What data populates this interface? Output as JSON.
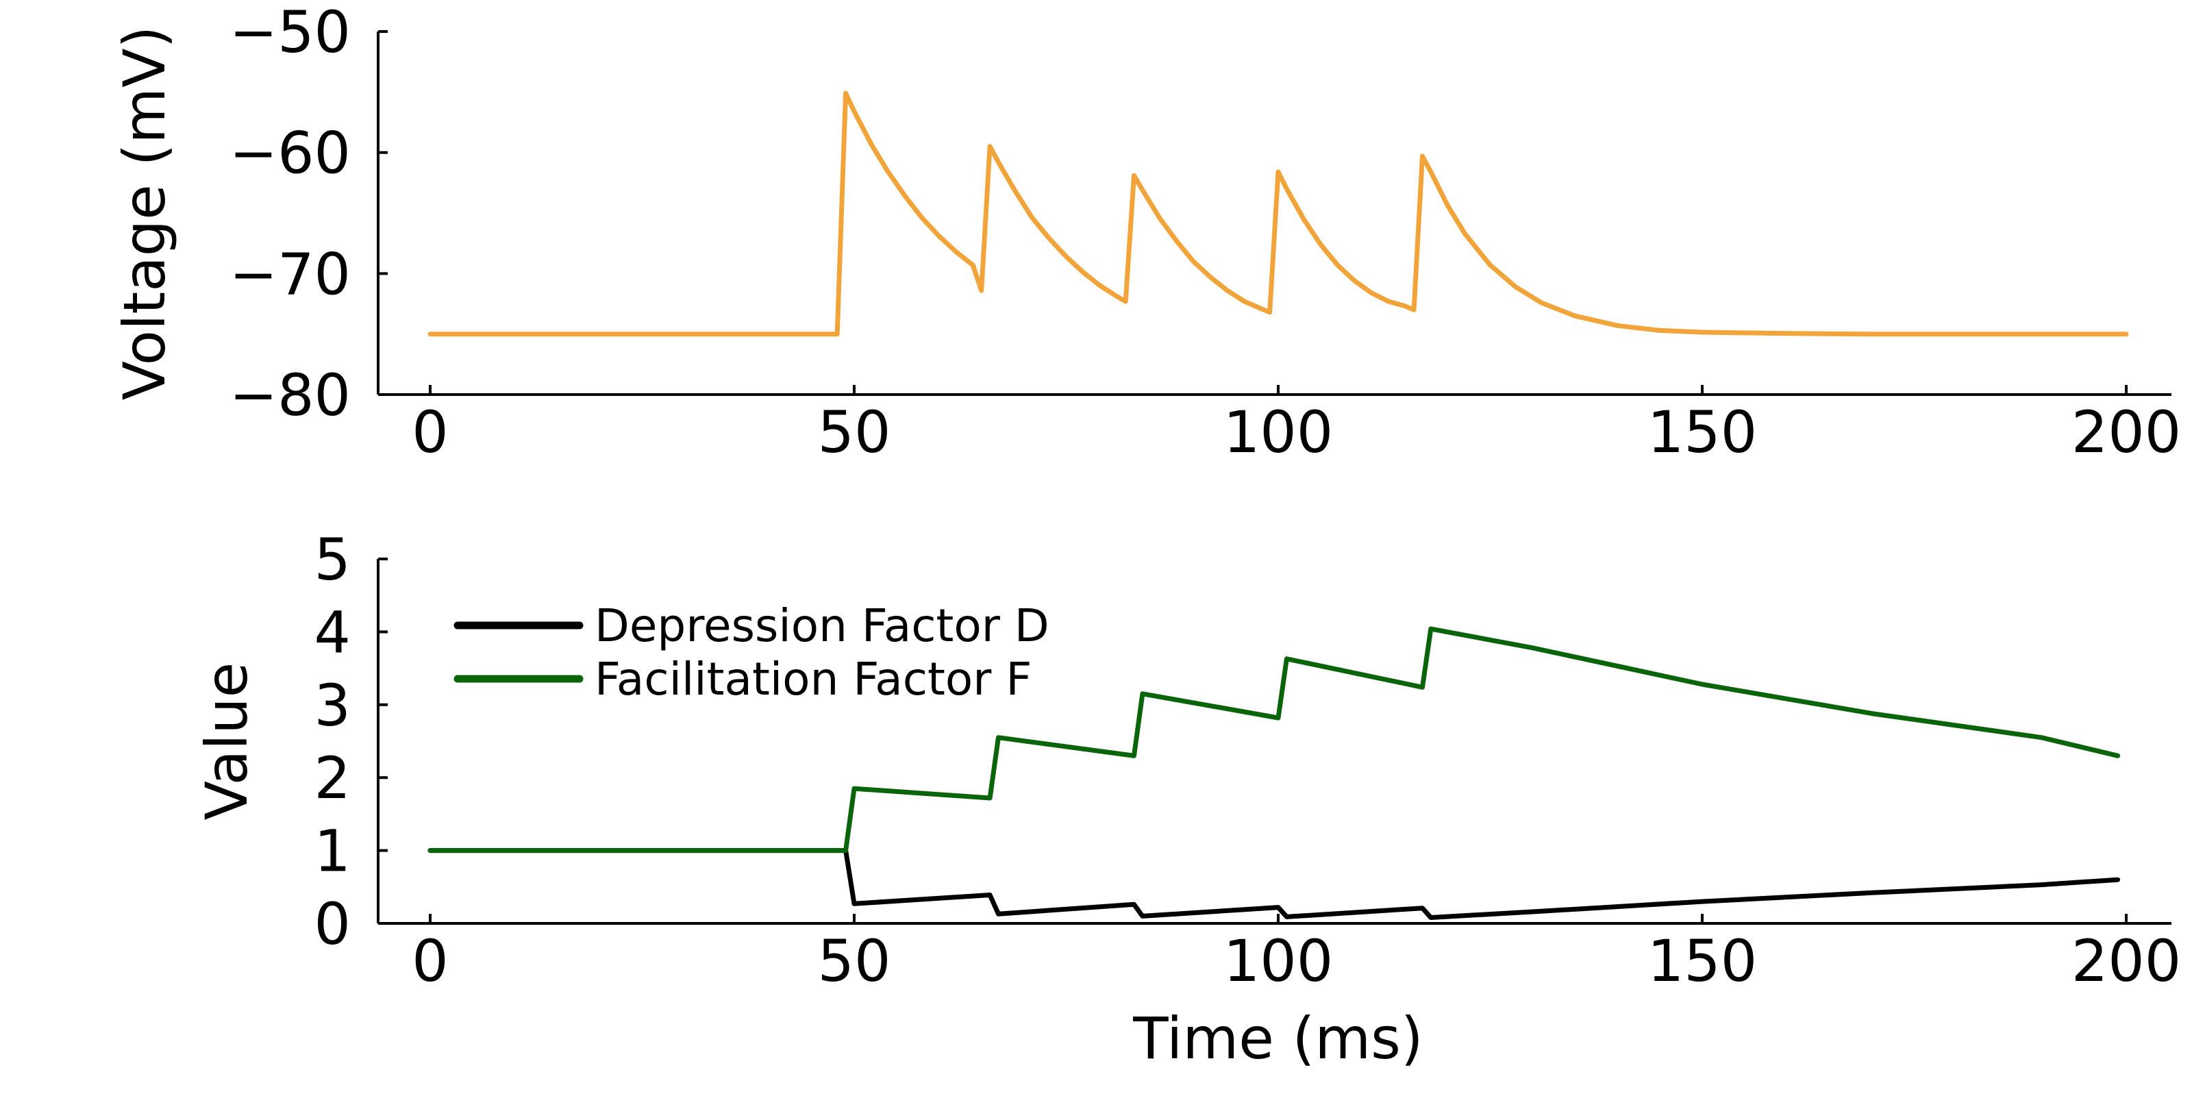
{
  "chart_data": [
    {
      "type": "line",
      "xlabel": "",
      "ylabel": "Voltage (mV)",
      "xlim": [
        0,
        200
      ],
      "ylim": [
        -80,
        -50
      ],
      "xticks": [
        "0",
        "50",
        "100",
        "150",
        "200"
      ],
      "yticks": [
        "−80",
        "−70",
        "−60",
        "−50"
      ],
      "grid": false,
      "series": [
        {
          "color": "#f0a43a",
          "x": [
            0,
            48,
            49,
            50,
            52,
            54,
            56,
            58,
            60,
            62,
            64,
            65,
            66,
            67,
            69,
            71,
            73,
            75,
            77,
            79,
            81,
            82,
            83,
            84,
            86,
            88,
            90,
            92,
            94,
            96,
            98,
            99,
            100,
            101,
            103,
            105,
            107,
            109,
            111,
            113,
            115,
            116,
            117,
            118,
            120,
            122,
            125,
            128,
            131,
            135,
            140,
            145,
            150,
            160,
            170,
            180,
            190,
            200
          ],
          "y": [
            -75,
            -75,
            -55.1,
            -56.6,
            -59.3,
            -61.6,
            -63.6,
            -65.4,
            -66.9,
            -68.2,
            -69.3,
            -71.4,
            -59.5,
            -60.8,
            -63.2,
            -65.4,
            -67.1,
            -68.6,
            -69.9,
            -71,
            -71.9,
            -72.3,
            -61.9,
            -63.1,
            -65.4,
            -67.3,
            -69,
            -70.3,
            -71.4,
            -72.3,
            -72.9,
            -73.2,
            -61.6,
            -63,
            -65.5,
            -67.6,
            -69.3,
            -70.6,
            -71.6,
            -72.3,
            -72.7,
            -73,
            -60.3,
            -61.6,
            -64.4,
            -66.7,
            -69.3,
            -71.1,
            -72.4,
            -73.5,
            -74.3,
            -74.7,
            -74.85,
            -74.95,
            -75,
            -75,
            -75,
            -75
          ]
        }
      ]
    },
    {
      "type": "line",
      "xlabel": "Time (ms)",
      "ylabel": "Value",
      "xlim": [
        0,
        200
      ],
      "ylim": [
        0,
        5
      ],
      "xticks": [
        "0",
        "50",
        "100",
        "150",
        "200"
      ],
      "yticks": [
        "0",
        "1",
        "2",
        "3",
        "4",
        "5"
      ],
      "grid": false,
      "legend_position": "top-left",
      "series": [
        {
          "name": "Depression Factor D",
          "color": "#000000",
          "x": [
            0,
            49,
            50,
            66,
            67,
            83,
            84,
            100,
            101,
            117,
            118,
            130,
            150,
            170,
            190,
            199
          ],
          "y": [
            1,
            1,
            0.27,
            0.39,
            0.13,
            0.26,
            0.1,
            0.22,
            0.09,
            0.21,
            0.08,
            0.16,
            0.3,
            0.42,
            0.53,
            0.6
          ]
        },
        {
          "name": "Facilitation Factor F",
          "color": "#0a640a",
          "x": [
            0,
            49,
            50,
            66,
            67,
            83,
            84,
            100,
            101,
            117,
            118,
            130,
            150,
            170,
            190,
            199
          ],
          "y": [
            1,
            1,
            1.85,
            1.72,
            2.55,
            2.3,
            3.15,
            2.82,
            3.63,
            3.24,
            4.04,
            3.78,
            3.28,
            2.88,
            2.55,
            2.3
          ]
        }
      ]
    }
  ]
}
